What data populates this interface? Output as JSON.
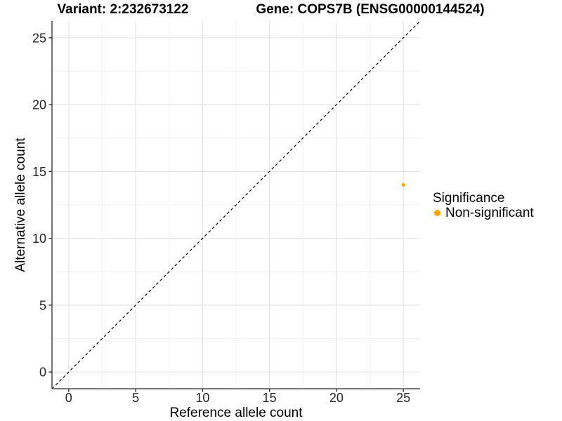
{
  "figure": {
    "variant_title": "Variant: 2:232673122",
    "gene_title": "Gene: COPS7B (ENSG00000144524)"
  },
  "chart_data": {
    "type": "scatter",
    "title_left": "Variant: 2:232673122",
    "title_right": "Gene: COPS7B (ENSG00000144524)",
    "xlabel": "Reference allele count",
    "ylabel": "Alternative allele count",
    "xlim": [
      -1.25,
      26.25
    ],
    "ylim": [
      -1.25,
      26.25
    ],
    "x_ticks": [
      0,
      5,
      10,
      15,
      20,
      25
    ],
    "y_ticks": [
      0,
      5,
      10,
      15,
      20,
      25
    ],
    "grid": "major+minor",
    "reference_line": {
      "type": "identity",
      "style": "dashed",
      "color": "#000000",
      "from": [
        -1.25,
        -1.25
      ],
      "to": [
        26.25,
        26.25
      ]
    },
    "series": [
      {
        "name": "Non-significant",
        "color": "#FFA500",
        "point_radius": 2.6,
        "points": [
          [
            25,
            14
          ]
        ]
      }
    ],
    "legend": {
      "title": "Significance",
      "position": "right",
      "entries": [
        {
          "label": "Non-significant",
          "color": "#FFA500"
        }
      ]
    },
    "colors": {
      "axis_line": "#666666",
      "tick_mark": "#333333",
      "tick_label": "#262626",
      "grid_major": "#E6E6E6",
      "grid_minor": "#F2F2F2"
    }
  }
}
